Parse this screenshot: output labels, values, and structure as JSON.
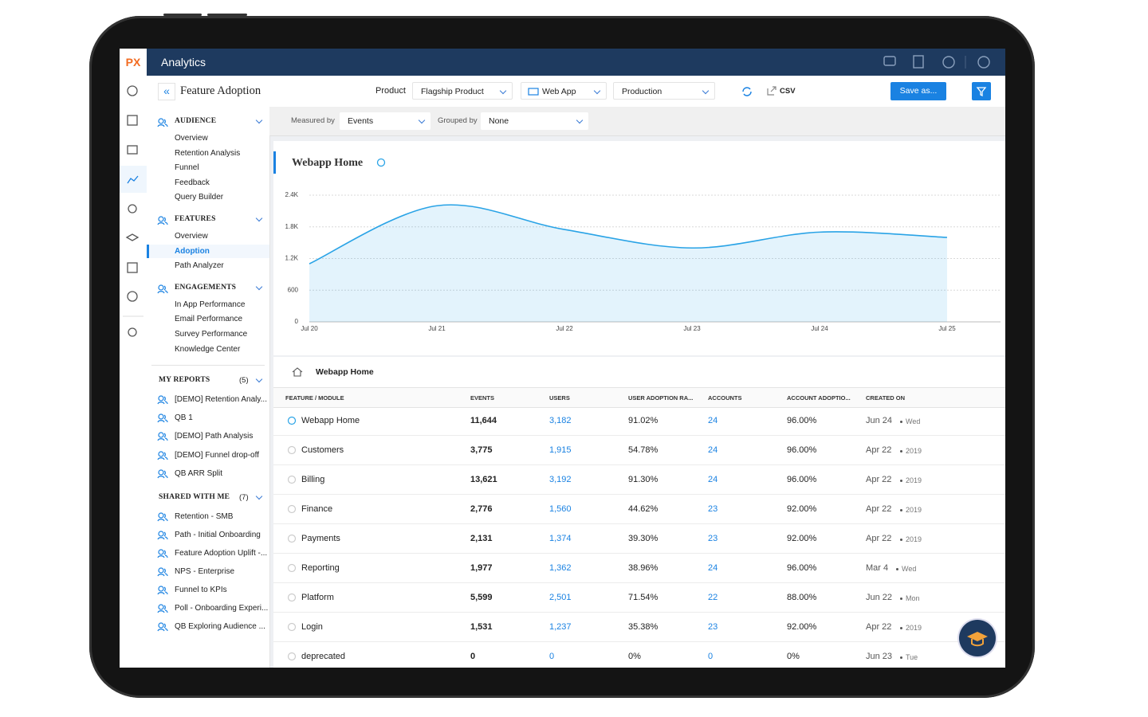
{
  "header": {
    "logo": "PX",
    "app": "Analytics",
    "page_title": "Feature Adoption",
    "product_label": "Product",
    "product": "Flagship Product",
    "platform": "Web App",
    "environment": "Production",
    "csv": "CSV",
    "save": "Save as..."
  },
  "filters": {
    "measured_label": "Measured by",
    "measured": "Events",
    "grouped_label": "Grouped by",
    "grouped": "None"
  },
  "sidebar": {
    "sections": [
      {
        "title": "AUDIENCE",
        "items": [
          "Overview",
          "Retention Analysis",
          "Funnel",
          "Feedback",
          "Query Builder"
        ]
      },
      {
        "title": "FEATURES",
        "items": [
          "Overview",
          "Adoption",
          "Path Analyzer"
        ],
        "active": 1
      },
      {
        "title": "ENGAGEMENTS",
        "items": [
          "In App Performance",
          "Email Performance",
          "Survey Performance",
          "Knowledge Center"
        ]
      }
    ],
    "reports": [
      {
        "title": "MY REPORTS",
        "count": "(5)",
        "items": [
          "[DEMO] Retention Analy...",
          "QB 1",
          "[DEMO] Path Analysis",
          "[DEMO] Funnel drop-off",
          "QB ARR Split"
        ]
      },
      {
        "title": "SHARED WITH ME",
        "count": "(7)",
        "items": [
          "Retention - SMB",
          "Path - Initial Onboarding",
          "Feature Adoption Uplift -...",
          "NPS - Enterprise",
          "Funnel to KPIs",
          "Poll - Onboarding Experi...",
          "QB Exploring Audience ..."
        ]
      }
    ]
  },
  "chart_data": {
    "type": "area",
    "title": "Webapp Home",
    "categories": [
      "Jul 20",
      "Jul 21",
      "Jul 22",
      "Jul 23",
      "Jul 24",
      "Jul 25"
    ],
    "values": [
      1100,
      2200,
      1750,
      1400,
      1700,
      1600
    ],
    "color": "#29a3e6",
    "ylim": [
      0,
      2400
    ],
    "yticks": [
      0,
      600,
      {
        "value": 1200,
        "label": "1.2K"
      },
      {
        "value": 1800,
        "label": "1.8K"
      },
      {
        "value": 2400,
        "label": "2.4K"
      }
    ],
    "grid": true
  },
  "table": {
    "title": "Webapp Home",
    "columns": [
      "FEATURE / MODULE",
      "EVENTS",
      "USERS",
      "USER ADOPTION RA...",
      "ACCOUNTS",
      "ACCOUNT ADOPTIO...",
      "CREATED ON"
    ],
    "rows": [
      [
        "Webapp Home",
        "11,644",
        "3,182",
        "91.02%",
        "24",
        "96.00%",
        "Jun 24",
        "Wed"
      ],
      [
        "Customers",
        "3,775",
        "1,915",
        "54.78%",
        "24",
        "96.00%",
        "Apr 22",
        "2019"
      ],
      [
        "Billing",
        "13,621",
        "3,192",
        "91.30%",
        "24",
        "96.00%",
        "Apr 22",
        "2019"
      ],
      [
        "Finance",
        "2,776",
        "1,560",
        "44.62%",
        "23",
        "92.00%",
        "Apr 22",
        "2019"
      ],
      [
        "Payments",
        "2,131",
        "1,374",
        "39.30%",
        "23",
        "92.00%",
        "Apr 22",
        "2019"
      ],
      [
        "Reporting",
        "1,977",
        "1,362",
        "38.96%",
        "24",
        "96.00%",
        "Mar 4",
        "Wed"
      ],
      [
        "Platform",
        "5,599",
        "2,501",
        "71.54%",
        "22",
        "88.00%",
        "Jun 22",
        "Mon"
      ],
      [
        "Login",
        "1,531",
        "1,237",
        "35.38%",
        "23",
        "92.00%",
        "Apr 22",
        "2019"
      ],
      [
        "deprecated",
        "0",
        "0",
        "0%",
        "0",
        "0%",
        "Jun 23",
        "Tue"
      ]
    ]
  }
}
